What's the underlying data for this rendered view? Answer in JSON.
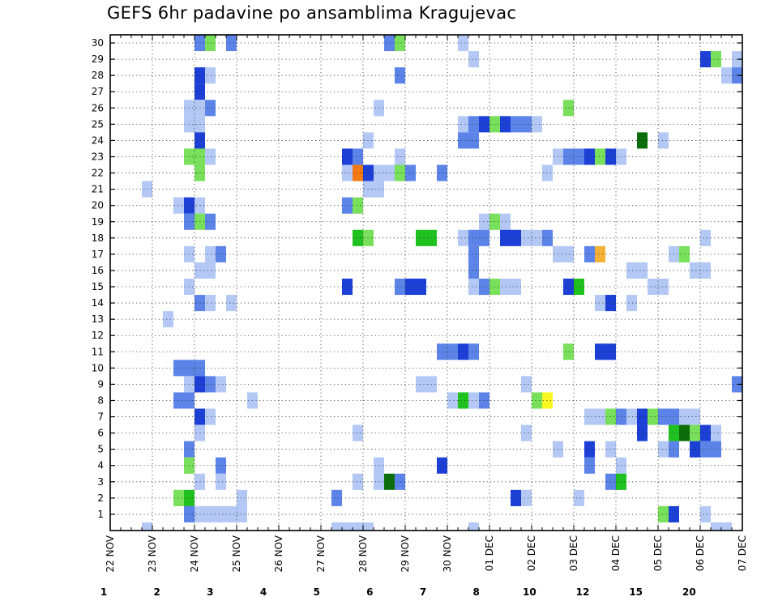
{
  "chart_data": {
    "type": "heatmap",
    "title": "GEFS 6hr padavine po ansamblima Kragujevac",
    "xlabel": "",
    "ylabel": "",
    "x_tick_labels": [
      "22 NOV",
      "23 NOV",
      "24 NOV",
      "25 NOV",
      "26 NOV",
      "27 NOV",
      "28 NOV",
      "29 NOV",
      "30 NOV",
      "01 DEC",
      "02 DEC",
      "03 DEC",
      "04 DEC",
      "05 DEC",
      "06 DEC",
      "07 DEC"
    ],
    "y_tick_labels": [
      "1",
      "2",
      "3",
      "4",
      "5",
      "6",
      "7",
      "8",
      "9",
      "10",
      "11",
      "12",
      "13",
      "14",
      "15",
      "16",
      "17",
      "18",
      "19",
      "20",
      "21",
      "22",
      "23",
      "24",
      "25",
      "26",
      "27",
      "28",
      "29",
      "30"
    ],
    "x_steps_per_day": 4,
    "y_range": [
      0,
      30
    ],
    "grid": true,
    "colorbar": {
      "labels": [
        "1",
        "2",
        "3",
        "4",
        "5",
        "6",
        "7",
        "8",
        "10",
        "12",
        "15",
        "20"
      ],
      "colors": [
        "#b3c8f5",
        "#5c84e8",
        "#1c3fd6",
        "#78e05a",
        "#1fc11f",
        "#0b6e0b",
        "#f8f820",
        "#f5b036",
        "#f57a14",
        "#e0300f",
        "#b41212",
        "#700808"
      ]
    },
    "cells_format": "[member, time_step, color_class]",
    "cells": [
      [
        30,
        8,
        1
      ],
      [
        30,
        9,
        3
      ],
      [
        30,
        11,
        1
      ],
      [
        30,
        26,
        1
      ],
      [
        30,
        27,
        3
      ],
      [
        30,
        33,
        0
      ],
      [
        29,
        34,
        0
      ],
      [
        29,
        56,
        2
      ],
      [
        29,
        57,
        3
      ],
      [
        29,
        59,
        0
      ],
      [
        28,
        8,
        2
      ],
      [
        28,
        9,
        0
      ],
      [
        28,
        27,
        1
      ],
      [
        28,
        58,
        0
      ],
      [
        28,
        59,
        1
      ],
      [
        27,
        8,
        2
      ],
      [
        26,
        7,
        0
      ],
      [
        26,
        8,
        0
      ],
      [
        26,
        9,
        1
      ],
      [
        26,
        25,
        0
      ],
      [
        26,
        43,
        3
      ],
      [
        25,
        7,
        0
      ],
      [
        25,
        8,
        0
      ],
      [
        25,
        33,
        0
      ],
      [
        25,
        34,
        1
      ],
      [
        25,
        35,
        2
      ],
      [
        25,
        36,
        3
      ],
      [
        25,
        37,
        2
      ],
      [
        25,
        38,
        1
      ],
      [
        25,
        39,
        1
      ],
      [
        25,
        40,
        0
      ],
      [
        24,
        8,
        2
      ],
      [
        24,
        24,
        0
      ],
      [
        24,
        33,
        1
      ],
      [
        24,
        34,
        1
      ],
      [
        24,
        50,
        5
      ],
      [
        24,
        52,
        0
      ],
      [
        23,
        7,
        3
      ],
      [
        23,
        8,
        3
      ],
      [
        23,
        9,
        0
      ],
      [
        23,
        22,
        2
      ],
      [
        23,
        23,
        1
      ],
      [
        23,
        27,
        0
      ],
      [
        23,
        42,
        0
      ],
      [
        23,
        43,
        1
      ],
      [
        23,
        44,
        1
      ],
      [
        23,
        45,
        2
      ],
      [
        23,
        46,
        3
      ],
      [
        23,
        47,
        2
      ],
      [
        23,
        48,
        0
      ],
      [
        22,
        8,
        3
      ],
      [
        22,
        22,
        0
      ],
      [
        22,
        23,
        8
      ],
      [
        22,
        24,
        2
      ],
      [
        22,
        25,
        0
      ],
      [
        22,
        26,
        0
      ],
      [
        22,
        27,
        3
      ],
      [
        22,
        28,
        1
      ],
      [
        22,
        31,
        1
      ],
      [
        22,
        41,
        0
      ],
      [
        21,
        3,
        0
      ],
      [
        21,
        24,
        0
      ],
      [
        21,
        25,
        0
      ],
      [
        20,
        6,
        0
      ],
      [
        20,
        7,
        2
      ],
      [
        20,
        8,
        0
      ],
      [
        20,
        22,
        1
      ],
      [
        20,
        23,
        3
      ],
      [
        19,
        7,
        1
      ],
      [
        19,
        8,
        3
      ],
      [
        19,
        9,
        1
      ],
      [
        19,
        35,
        0
      ],
      [
        19,
        36,
        3
      ],
      [
        19,
        37,
        0
      ],
      [
        18,
        23,
        4
      ],
      [
        18,
        24,
        3
      ],
      [
        18,
        29,
        4
      ],
      [
        18,
        30,
        4
      ],
      [
        18,
        33,
        0
      ],
      [
        18,
        34,
        1
      ],
      [
        18,
        35,
        1
      ],
      [
        18,
        37,
        2
      ],
      [
        18,
        38,
        2
      ],
      [
        18,
        39,
        0
      ],
      [
        18,
        40,
        0
      ],
      [
        18,
        41,
        1
      ],
      [
        18,
        56,
        0
      ],
      [
        17,
        7,
        0
      ],
      [
        17,
        9,
        0
      ],
      [
        17,
        10,
        1
      ],
      [
        17,
        34,
        1
      ],
      [
        17,
        42,
        0
      ],
      [
        17,
        43,
        0
      ],
      [
        17,
        45,
        1
      ],
      [
        17,
        46,
        7
      ],
      [
        17,
        53,
        0
      ],
      [
        17,
        54,
        3
      ],
      [
        16,
        8,
        0
      ],
      [
        16,
        9,
        0
      ],
      [
        16,
        34,
        1
      ],
      [
        16,
        49,
        0
      ],
      [
        16,
        50,
        0
      ],
      [
        16,
        55,
        0
      ],
      [
        16,
        56,
        0
      ],
      [
        15,
        7,
        0
      ],
      [
        15,
        22,
        2
      ],
      [
        15,
        27,
        1
      ],
      [
        15,
        28,
        2
      ],
      [
        15,
        29,
        2
      ],
      [
        15,
        34,
        0
      ],
      [
        15,
        35,
        1
      ],
      [
        15,
        36,
        3
      ],
      [
        15,
        37,
        0
      ],
      [
        15,
        38,
        0
      ],
      [
        15,
        43,
        2
      ],
      [
        15,
        44,
        4
      ],
      [
        15,
        51,
        0
      ],
      [
        15,
        52,
        0
      ],
      [
        14,
        8,
        1
      ],
      [
        14,
        9,
        0
      ],
      [
        14,
        11,
        0
      ],
      [
        14,
        46,
        0
      ],
      [
        14,
        47,
        2
      ],
      [
        14,
        49,
        0
      ],
      [
        13,
        5,
        0
      ],
      [
        11,
        31,
        1
      ],
      [
        11,
        32,
        1
      ],
      [
        11,
        33,
        2
      ],
      [
        11,
        34,
        1
      ],
      [
        11,
        43,
        3
      ],
      [
        11,
        46,
        2
      ],
      [
        11,
        47,
        2
      ],
      [
        10,
        6,
        1
      ],
      [
        10,
        7,
        1
      ],
      [
        10,
        8,
        1
      ],
      [
        9,
        7,
        0
      ],
      [
        9,
        8,
        2
      ],
      [
        9,
        9,
        1
      ],
      [
        9,
        10,
        0
      ],
      [
        9,
        29,
        0
      ],
      [
        9,
        30,
        0
      ],
      [
        9,
        39,
        0
      ],
      [
        9,
        59,
        1
      ],
      [
        8,
        6,
        1
      ],
      [
        8,
        7,
        1
      ],
      [
        8,
        13,
        0
      ],
      [
        8,
        32,
        0
      ],
      [
        8,
        33,
        4
      ],
      [
        8,
        34,
        0
      ],
      [
        8,
        35,
        1
      ],
      [
        8,
        40,
        3
      ],
      [
        8,
        41,
        6
      ],
      [
        7,
        8,
        2
      ],
      [
        7,
        9,
        0
      ],
      [
        7,
        45,
        0
      ],
      [
        7,
        46,
        0
      ],
      [
        7,
        47,
        3
      ],
      [
        7,
        48,
        1
      ],
      [
        7,
        49,
        0
      ],
      [
        7,
        50,
        2
      ],
      [
        7,
        51,
        3
      ],
      [
        7,
        52,
        1
      ],
      [
        7,
        53,
        1
      ],
      [
        7,
        54,
        0
      ],
      [
        7,
        55,
        0
      ],
      [
        6,
        8,
        0
      ],
      [
        6,
        23,
        0
      ],
      [
        6,
        39,
        0
      ],
      [
        6,
        50,
        2
      ],
      [
        6,
        53,
        4
      ],
      [
        6,
        54,
        5
      ],
      [
        6,
        55,
        3
      ],
      [
        6,
        56,
        2
      ],
      [
        6,
        57,
        0
      ],
      [
        5,
        7,
        1
      ],
      [
        5,
        42,
        0
      ],
      [
        5,
        45,
        2
      ],
      [
        5,
        47,
        0
      ],
      [
        5,
        52,
        0
      ],
      [
        5,
        53,
        1
      ],
      [
        5,
        55,
        2
      ],
      [
        5,
        56,
        1
      ],
      [
        5,
        57,
        1
      ],
      [
        4,
        7,
        3
      ],
      [
        4,
        10,
        1
      ],
      [
        4,
        25,
        0
      ],
      [
        4,
        31,
        2
      ],
      [
        4,
        45,
        1
      ],
      [
        4,
        48,
        0
      ],
      [
        3,
        8,
        0
      ],
      [
        3,
        10,
        0
      ],
      [
        3,
        23,
        0
      ],
      [
        3,
        25,
        0
      ],
      [
        3,
        26,
        5
      ],
      [
        3,
        27,
        1
      ],
      [
        3,
        47,
        1
      ],
      [
        3,
        48,
        4
      ],
      [
        2,
        6,
        3
      ],
      [
        2,
        7,
        4
      ],
      [
        2,
        12,
        0
      ],
      [
        2,
        21,
        1
      ],
      [
        2,
        38,
        2
      ],
      [
        2,
        39,
        0
      ],
      [
        2,
        44,
        0
      ],
      [
        1,
        7,
        1
      ],
      [
        1,
        8,
        0
      ],
      [
        1,
        9,
        0
      ],
      [
        1,
        10,
        0
      ],
      [
        1,
        11,
        0
      ],
      [
        1,
        12,
        0
      ],
      [
        1,
        52,
        3
      ],
      [
        1,
        53,
        2
      ],
      [
        1,
        56,
        0
      ],
      [
        0,
        3,
        0
      ],
      [
        0,
        21,
        0
      ],
      [
        0,
        22,
        0
      ],
      [
        0,
        23,
        0
      ],
      [
        0,
        24,
        0
      ],
      [
        0,
        34,
        0
      ],
      [
        0,
        57,
        0
      ],
      [
        0,
        58,
        0
      ]
    ]
  }
}
